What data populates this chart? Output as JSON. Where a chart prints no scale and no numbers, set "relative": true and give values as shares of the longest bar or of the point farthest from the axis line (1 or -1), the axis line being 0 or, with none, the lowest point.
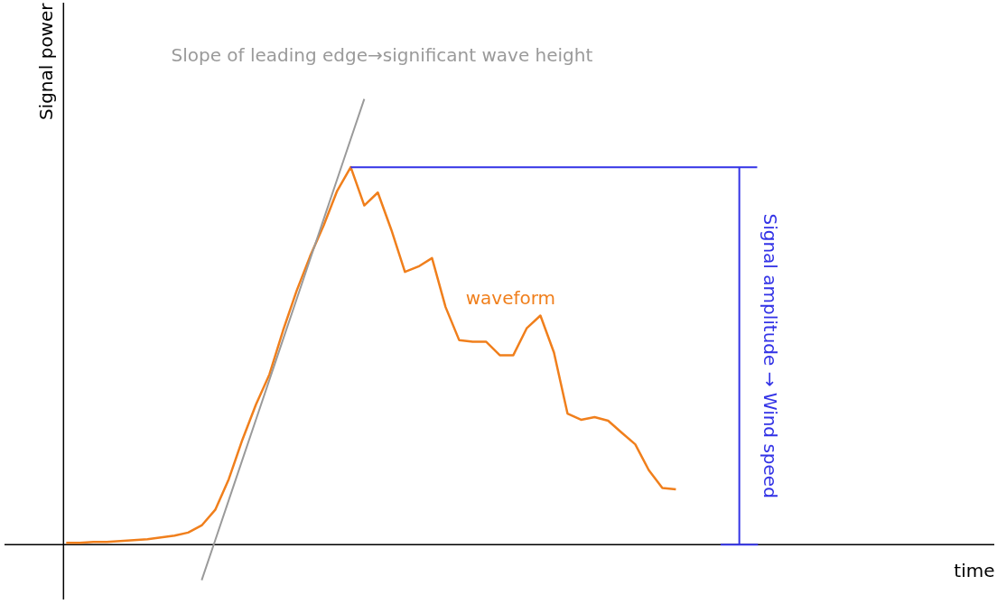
{
  "chart_data": {
    "type": "line",
    "relative": true,
    "xlabel": "time",
    "ylabel": "Signal power",
    "legend": false,
    "grid": false,
    "line_style": "solid",
    "marker": "none",
    "categories": [
      null,
      null,
      null,
      null,
      null,
      null,
      null,
      null,
      null,
      null,
      null,
      null,
      null,
      null,
      null,
      null,
      null,
      null,
      null,
      null,
      null,
      null,
      null,
      null,
      null,
      null,
      null,
      null,
      null,
      null,
      null,
      null,
      null,
      null,
      null,
      null,
      null,
      null,
      null,
      null,
      null,
      null,
      null,
      null,
      null,
      null,
      null,
      null,
      null,
      null,
      null,
      null,
      null,
      null,
      null,
      null,
      null,
      null,
      null,
      null,
      null,
      null,
      null,
      null,
      null,
      null,
      null,
      null,
      null
    ],
    "series": [
      {
        "name": "waveform",
        "color": "#f07f1c",
        "values": [
          0.004,
          0.004,
          0.006,
          0.006,
          0.008,
          0.01,
          0.012,
          0.016,
          0.02,
          0.027,
          0.043,
          0.078,
          0.147,
          0.235,
          0.314,
          0.382,
          0.48,
          0.569,
          0.647,
          0.716,
          0.794,
          0.847,
          0.761,
          0.79,
          0.706,
          0.612,
          0.624,
          0.643,
          0.533,
          0.459,
          0.455,
          0.455,
          0.425,
          0.425,
          0.486,
          0.514,
          0.431,
          0.294,
          0.28,
          0.286,
          0.278,
          0.251,
          0.225,
          0.167,
          0.127,
          0.124,
          null,
          null,
          null,
          null,
          null,
          null,
          null,
          null,
          null,
          null,
          null,
          null,
          null,
          null,
          null,
          null,
          null,
          null,
          null,
          null,
          null,
          null,
          null
        ]
      },
      {
        "color": "#9a9a9a",
        "values": [
          null,
          null,
          null,
          null,
          null,
          null,
          null,
          null,
          null,
          null,
          -0.08,
          0.01,
          0.1,
          0.19,
          0.28,
          0.37,
          0.46,
          0.55,
          0.64,
          0.73,
          0.82,
          0.91,
          1.0,
          null,
          null,
          null,
          null,
          null,
          null,
          null,
          null,
          null,
          null,
          null,
          null,
          null,
          null,
          null,
          null,
          null,
          null,
          null,
          null,
          null,
          null,
          null,
          null,
          null,
          null,
          null,
          null,
          null,
          null,
          null,
          null,
          null,
          null,
          null,
          null,
          null,
          null,
          null,
          null,
          null,
          null,
          null,
          null,
          null,
          null
        ]
      },
      {
        "color": "#3333e6",
        "values": [
          null,
          null,
          null,
          null,
          null,
          null,
          null,
          null,
          null,
          null,
          null,
          null,
          null,
          null,
          null,
          null,
          null,
          null,
          null,
          null,
          null,
          0.847,
          0.847,
          0.847,
          0.847,
          0.847,
          0.847,
          0.847,
          0.847,
          0.847,
          0.847,
          0.847,
          0.847,
          0.847,
          0.847,
          0.847,
          0.847,
          0.847,
          0.847,
          0.847,
          0.847,
          0.847,
          0.847,
          0.847,
          0.847,
          0.847,
          0.847,
          0.847,
          0.847,
          0.847,
          0.847,
          0.847,
          null,
          null,
          null,
          null,
          null,
          null,
          null,
          null,
          null,
          null,
          null,
          null,
          null,
          null,
          null,
          null,
          null
        ]
      }
    ],
    "annotations": [
      "Slope of leading edge→significant wave height",
      "Signal amplitude → Wind speed"
    ]
  }
}
